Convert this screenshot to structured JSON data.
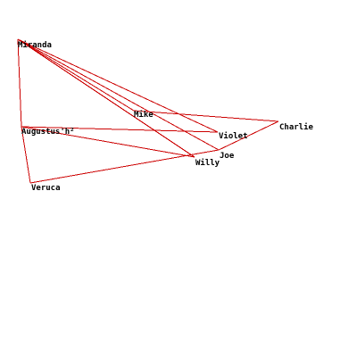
{
  "graph": {
    "edge_color": "#cc0000",
    "label_color": "#000000",
    "background": "#ffffff",
    "nodes": [
      {
        "id": "miranda",
        "label": "Miranda"
      },
      {
        "id": "mike",
        "label": "Mike"
      },
      {
        "id": "charlie",
        "label": "Charlie"
      },
      {
        "id": "augustus",
        "label": "Augustus'h²"
      },
      {
        "id": "violet",
        "label": "Violet"
      },
      {
        "id": "joe",
        "label": "Joe"
      },
      {
        "id": "willy",
        "label": "Willy"
      },
      {
        "id": "veruca",
        "label": "Veruca"
      }
    ],
    "edges": [
      [
        "miranda",
        "augustus"
      ],
      [
        "miranda",
        "mike"
      ],
      [
        "miranda",
        "joe"
      ],
      [
        "miranda",
        "willy"
      ],
      [
        "miranda",
        "violet"
      ],
      [
        "mike",
        "charlie"
      ],
      [
        "charlie",
        "joe"
      ],
      [
        "augustus",
        "violet"
      ],
      [
        "augustus",
        "willy"
      ],
      [
        "augustus",
        "veruca"
      ],
      [
        "veruca",
        "joe"
      ]
    ]
  }
}
